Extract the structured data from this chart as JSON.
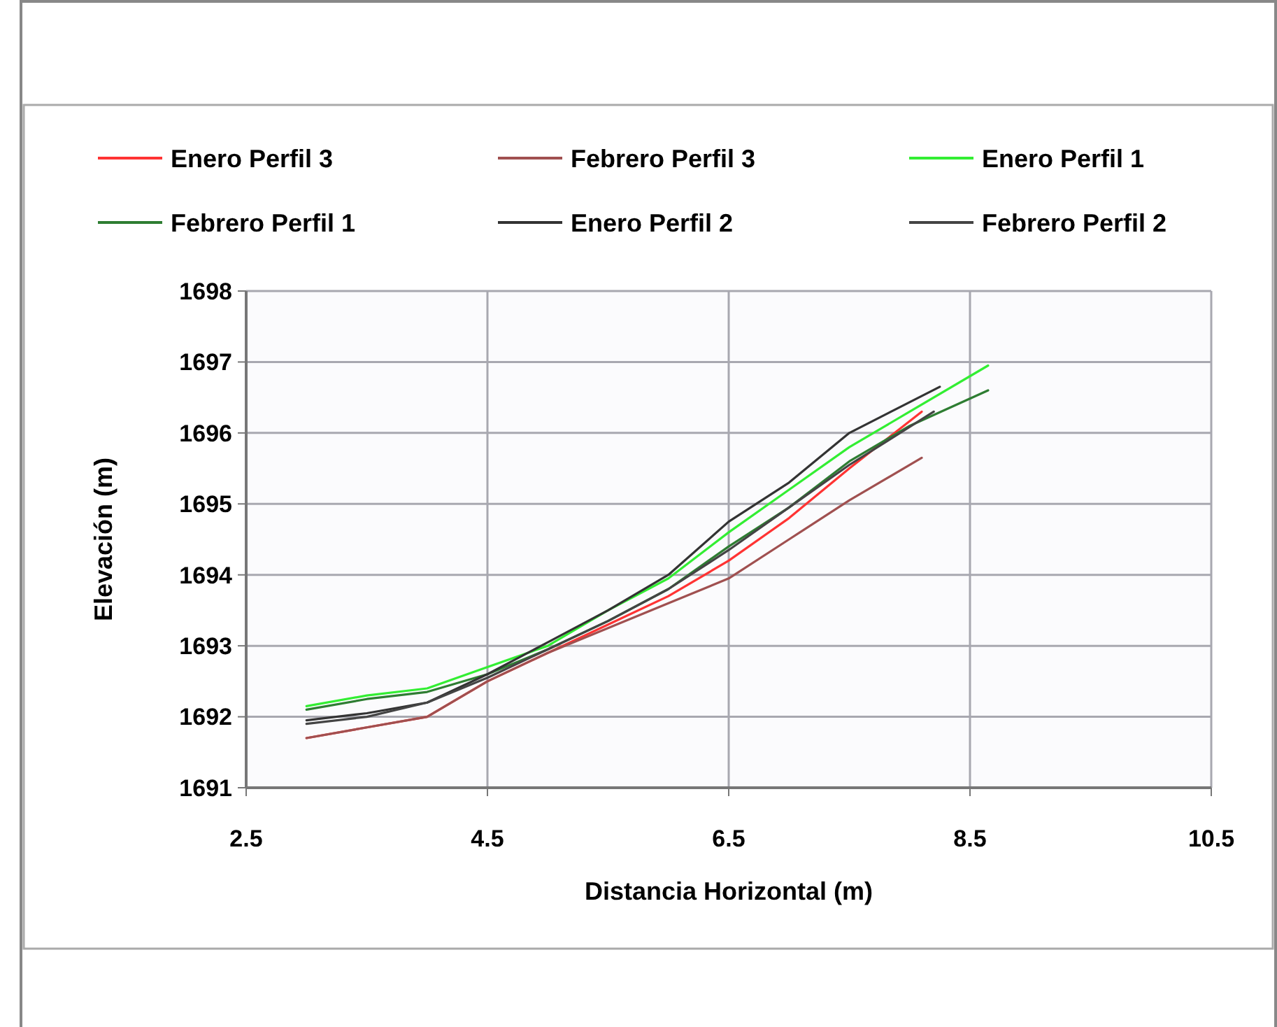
{
  "chart_data": {
    "type": "line",
    "xlabel": "Distancia Horizontal (m)",
    "ylabel": "Elevación (m)",
    "xlim": [
      2.5,
      10.5
    ],
    "xticks": [
      2.5,
      4.5,
      6.5,
      8.5,
      10.5
    ],
    "ylim": [
      1691,
      1698
    ],
    "yticks": [
      1691,
      1692,
      1693,
      1694,
      1695,
      1696,
      1697,
      1698
    ],
    "grid": true,
    "legend": "top",
    "line_style": "solid",
    "marker": "none",
    "series": [
      {
        "name": "Enero Perfil 3",
        "color": "#ff3333",
        "x": [
          3.0,
          3.5,
          4.0,
          4.5,
          5.0,
          5.5,
          6.0,
          6.5,
          7.0,
          7.5,
          8.1
        ],
        "values": [
          1691.7,
          1691.85,
          1692.0,
          1692.5,
          1692.9,
          1693.3,
          1693.7,
          1694.2,
          1694.8,
          1695.5,
          1696.3
        ]
      },
      {
        "name": "Febrero Perfil 3",
        "color": "#a05050",
        "x": [
          3.0,
          3.5,
          4.0,
          4.5,
          5.0,
          5.5,
          6.0,
          6.5,
          7.0,
          7.5,
          8.1
        ],
        "values": [
          1691.7,
          1691.85,
          1692.0,
          1692.5,
          1692.9,
          1693.25,
          1693.6,
          1693.95,
          1694.5,
          1695.05,
          1695.65
        ]
      },
      {
        "name": "Enero Perfil 1",
        "color": "#33ee33",
        "x": [
          3.0,
          3.5,
          4.0,
          4.5,
          5.0,
          5.5,
          6.0,
          6.5,
          7.0,
          7.5,
          8.0,
          8.65
        ],
        "values": [
          1692.15,
          1692.3,
          1692.4,
          1692.7,
          1693.0,
          1693.5,
          1693.95,
          1694.6,
          1695.2,
          1695.8,
          1696.3,
          1696.95
        ]
      },
      {
        "name": "Febrero Perfil 1",
        "color": "#2e7d32",
        "x": [
          3.0,
          3.5,
          4.0,
          4.5,
          5.0,
          5.5,
          6.0,
          6.5,
          7.0,
          7.5,
          8.0,
          8.65
        ],
        "values": [
          1692.1,
          1692.25,
          1692.35,
          1692.6,
          1692.95,
          1693.35,
          1693.8,
          1694.4,
          1694.95,
          1695.6,
          1696.1,
          1696.6
        ]
      },
      {
        "name": "Enero Perfil 2",
        "color": "#333333",
        "x": [
          3.0,
          3.5,
          4.0,
          4.5,
          5.0,
          5.5,
          6.0,
          6.5,
          7.0,
          7.5,
          8.25
        ],
        "values": [
          1691.95,
          1692.05,
          1692.2,
          1692.6,
          1693.05,
          1693.5,
          1694.0,
          1694.75,
          1695.3,
          1696.0,
          1696.65
        ]
      },
      {
        "name": "Febrero Perfil 2",
        "color": "#444444",
        "x": [
          3.0,
          3.5,
          4.0,
          4.5,
          5.0,
          5.5,
          6.0,
          6.5,
          7.0,
          7.5,
          8.2
        ],
        "values": [
          1691.9,
          1692.0,
          1692.2,
          1692.55,
          1692.95,
          1693.35,
          1693.8,
          1694.35,
          1694.95,
          1695.55,
          1696.3
        ]
      }
    ]
  }
}
